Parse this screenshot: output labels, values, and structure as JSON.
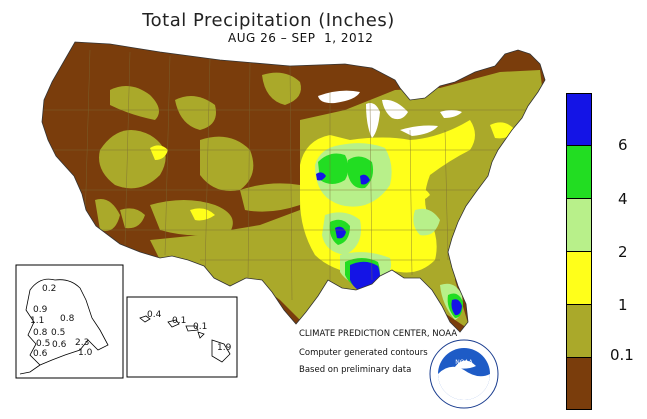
{
  "title": "Total Precipitation (Inches)",
  "subtitle": "AUG 26 – SEP  1, 2012",
  "colors": {
    "c0": "#7a3d0c",
    "c01": "#aaa92a",
    "c1": "#ffff1a",
    "c2": "#b8f08a",
    "c4": "#22dd22",
    "c6": "#1414e6",
    "water": "#ffffff"
  },
  "legend": {
    "labels": [
      "6",
      "4",
      "2",
      "1",
      "0.1"
    ],
    "levels": [
      {
        "min": 6,
        "color": "#1414e6"
      },
      {
        "min": 4,
        "color": "#22dd22"
      },
      {
        "min": 2,
        "color": "#b8f08a"
      },
      {
        "min": 1,
        "color": "#ffff1a"
      },
      {
        "min": 0.1,
        "color": "#aaa92a"
      },
      {
        "min": 0,
        "color": "#7a3d0c"
      }
    ]
  },
  "credits": {
    "line1": "CLIMATE PREDICTION CENTER, NOAA",
    "line2": "Computer generated contours",
    "line3": "Based on preliminary data"
  },
  "logo_text": "NOAA",
  "logo_ring_text": "NATIONAL OCEANIC AND ATMOSPHERIC ADMINISTRATION · U.S. DEPARTMENT OF COMMERCE",
  "alaska_values": [
    "0.2",
    "0.9",
    "0.8",
    "1.1",
    "0.8",
    "0.5",
    "0.6",
    "2.3",
    "0.6",
    "1.0",
    "0.5"
  ],
  "hawaii_values": [
    "0.4",
    "0.1",
    "0.1",
    "1.9"
  ]
}
